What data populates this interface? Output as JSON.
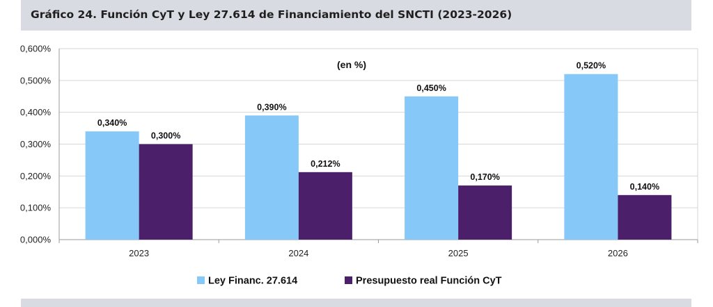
{
  "header": {
    "title": "Gráfico 24. Función CyT y Ley 27.614 de Financiamiento del SNCTI (2023-2026)"
  },
  "chart_data": {
    "type": "bar",
    "title": "Gráfico 24. Función CyT y Ley 27.614 de Financiamiento del SNCTI (2023-2026)",
    "annotation": "(en %)",
    "categories": [
      "2023",
      "2024",
      "2025",
      "2026"
    ],
    "series": [
      {
        "name": "Ley Financ. 27.614",
        "values": [
          0.34,
          0.39,
          0.45,
          0.52
        ],
        "labels": [
          "0,340%",
          "0,390%",
          "0,450%",
          "0,520%"
        ],
        "color": "#86c8f7"
      },
      {
        "name": "Presupuesto real Función CyT",
        "values": [
          0.3,
          0.212,
          0.17,
          0.14
        ],
        "labels": [
          "0,300%",
          "0,212%",
          "0,170%",
          "0,140%"
        ],
        "color": "#4b1f6a"
      }
    ],
    "ylim": [
      0,
      0.6
    ],
    "yticks": [
      0,
      0.1,
      0.2,
      0.3,
      0.4,
      0.5,
      0.6
    ],
    "ytick_labels": [
      "0,000%",
      "0,100%",
      "0,200%",
      "0,300%",
      "0,400%",
      "0,500%",
      "0,600%"
    ],
    "xlabel": "",
    "ylabel": "",
    "grid": true,
    "legend_position": "bottom"
  }
}
